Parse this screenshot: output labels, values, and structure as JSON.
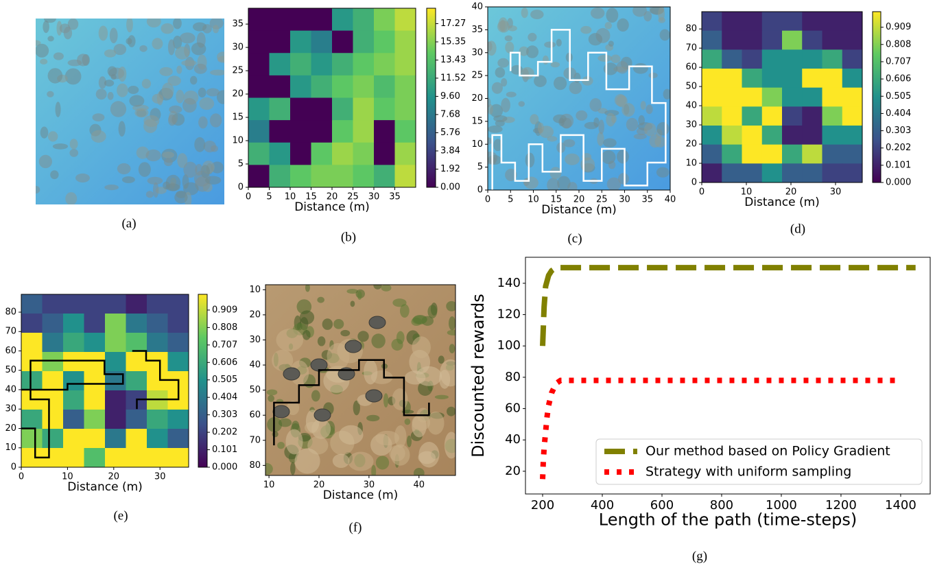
{
  "chart_data": [
    {
      "type": "image",
      "caption": "(a)"
    },
    {
      "type": "heatmap",
      "caption": "(b)",
      "xlabel": "Distance (m)",
      "xlim": [
        0,
        40
      ],
      "ylim": [
        0,
        38.4
      ],
      "xticks": [
        0,
        5,
        10,
        15,
        20,
        25,
        30,
        35
      ],
      "yticks": [
        0,
        5,
        10,
        15,
        20,
        25,
        30,
        35
      ],
      "clim": [
        0,
        18.9
      ],
      "cticks": [
        {
          "value": 0,
          "label": "0.00"
        },
        1.92,
        3.84,
        5.76,
        7.68,
        {
          "value": 9.6,
          "label": "9.60"
        },
        11.52,
        13.43,
        15.35,
        17.27
      ],
      "z": [
        [
          0,
          0,
          0,
          0,
          10,
          12,
          15,
          17
        ],
        [
          0,
          0,
          10,
          8,
          0,
          12,
          14,
          16
        ],
        [
          0,
          10,
          12,
          10,
          12,
          14,
          15,
          16
        ],
        [
          0,
          0,
          10,
          12,
          14,
          15,
          13,
          15
        ],
        [
          10,
          12,
          0,
          0,
          12,
          16,
          14,
          15
        ],
        [
          8,
          0,
          0,
          0,
          14,
          16,
          0,
          14
        ],
        [
          12,
          10,
          0,
          14,
          16,
          15,
          0,
          16
        ],
        [
          0,
          12,
          14,
          15,
          15,
          14,
          12,
          17
        ]
      ]
    },
    {
      "type": "image-path",
      "caption": "(c)",
      "xlabel": "Distance (m)",
      "xlim": [
        0,
        40
      ],
      "ylim": [
        0,
        40
      ],
      "xticks": [
        0,
        5,
        10,
        15,
        20,
        25,
        30,
        35,
        40
      ],
      "yticks": [
        0,
        5,
        10,
        15,
        20,
        25,
        30,
        35,
        40
      ],
      "path_color": "#ffffff",
      "path": {
        "x": [
          1,
          1,
          3,
          3,
          6,
          6,
          9,
          9,
          12,
          12,
          16,
          16,
          21,
          21,
          25,
          25,
          30,
          30,
          35,
          35,
          39,
          39,
          36,
          36,
          31,
          31,
          26,
          26,
          22,
          22,
          18,
          18,
          14,
          14,
          11,
          11,
          7,
          7,
          5,
          5
        ],
        "y": [
          0,
          12,
          12,
          6,
          6,
          2,
          2,
          10,
          10,
          4,
          4,
          12,
          12,
          2,
          2,
          9,
          9,
          1,
          1,
          6,
          6,
          19,
          19,
          27,
          27,
          22,
          22,
          30,
          30,
          24,
          24,
          35,
          35,
          28,
          28,
          25,
          25,
          30,
          30,
          26
        ]
      }
    },
    {
      "type": "heatmap",
      "caption": "(d)",
      "xlabel": "Distance (m)",
      "xlim": [
        0,
        36
      ],
      "ylim": [
        0,
        89
      ],
      "xticks": [
        0,
        10,
        20,
        30
      ],
      "yticks": [
        0,
        10,
        20,
        30,
        40,
        50,
        60,
        70,
        80
      ],
      "clim": [
        0,
        1
      ],
      "cticks": [
        {
          "value": 0,
          "label": "0.000"
        },
        0.101,
        0.202,
        0.303,
        0.404,
        0.505,
        0.606,
        0.707,
        0.808,
        0.909
      ],
      "z": [
        [
          0.2,
          0.1,
          0.1,
          0.2,
          0.2,
          0.1,
          0.1,
          0.1
        ],
        [
          0.3,
          0.1,
          0.1,
          0.2,
          0.8,
          0.2,
          0.1,
          0.1
        ],
        [
          0.6,
          0.3,
          0.2,
          0.5,
          0.5,
          0.5,
          0.6,
          0.2
        ],
        [
          1,
          1,
          0.6,
          0.5,
          0.5,
          1,
          1,
          0.5
        ],
        [
          1,
          1,
          1,
          0.8,
          0.5,
          0.5,
          1,
          1
        ],
        [
          0.9,
          1,
          0.6,
          1,
          0.2,
          0.1,
          0.8,
          1
        ],
        [
          0.5,
          0.9,
          1,
          0.6,
          0.1,
          0.1,
          0.5,
          0.5
        ],
        [
          0.3,
          0.6,
          1,
          1,
          0.6,
          0.9,
          0.3,
          0.3
        ],
        [
          0.1,
          0.3,
          0.3,
          0.5,
          0.3,
          0.3,
          0.2,
          0.2
        ]
      ]
    },
    {
      "type": "heatmap",
      "caption": "(e)",
      "xlabel": "Distance (m)",
      "xlim": [
        0,
        36.2
      ],
      "ylim": [
        0,
        89.2
      ],
      "xticks": [
        0,
        10,
        20,
        30
      ],
      "yticks": [
        0,
        10,
        20,
        30,
        40,
        50,
        60,
        70,
        80
      ],
      "clim": [
        0,
        1
      ],
      "cticks": [
        {
          "value": 0,
          "label": "0.000"
        },
        0.101,
        0.202,
        0.303,
        0.404,
        0.505,
        0.606,
        0.707,
        0.808,
        0.909
      ],
      "z": [
        [
          0.3,
          0.2,
          0.2,
          0.2,
          0.2,
          0.1,
          0.2,
          0.2
        ],
        [
          0.2,
          0.3,
          0.5,
          0.2,
          0.8,
          0.4,
          0.3,
          0.2
        ],
        [
          1,
          0.4,
          0.6,
          0.5,
          0.8,
          0.7,
          0.4,
          0.3
        ],
        [
          1,
          0.8,
          1,
          1,
          0.5,
          1,
          1,
          0.5
        ],
        [
          0.6,
          1,
          0.5,
          1,
          0.4,
          0.6,
          1,
          1
        ],
        [
          1,
          1,
          0.6,
          1,
          0.1,
          0.2,
          0.9,
          1
        ],
        [
          0.6,
          1,
          0.3,
          0.8,
          0.1,
          0.3,
          0.6,
          0.5
        ],
        [
          0.8,
          0.6,
          1,
          1,
          0.4,
          1,
          0.5,
          0.3
        ],
        [
          1,
          1,
          1,
          0.7,
          1,
          1,
          1,
          1
        ]
      ],
      "path_color": "#000000",
      "path": {
        "x": [
          0,
          3,
          3,
          6,
          6,
          2,
          2,
          18,
          18,
          22,
          22,
          10,
          10,
          0,
          null,
          24,
          27,
          27,
          30,
          30,
          34,
          34,
          25,
          25
        ],
        "y": [
          20,
          20,
          5,
          5,
          35,
          35,
          55,
          55,
          48,
          48,
          43,
          43,
          40,
          40,
          null,
          60,
          60,
          55,
          55,
          45,
          45,
          35,
          35,
          30
        ]
      }
    },
    {
      "type": "image-path",
      "caption": "(f)",
      "xlabel": "Distance (m)",
      "xlim": [
        9.3,
        47.3
      ],
      "ylim": [
        84,
        8
      ],
      "xticks": [
        10,
        20,
        30,
        40
      ],
      "yticks": [
        10,
        20,
        30,
        40,
        50,
        60,
        70,
        80
      ],
      "path_color": "#000000",
      "path": {
        "x": [
          11,
          11,
          16,
          16,
          20,
          20,
          28,
          28,
          33,
          33,
          37,
          37,
          42,
          42
        ],
        "y": [
          72,
          55,
          55,
          48,
          48,
          42,
          42,
          38,
          38,
          45,
          45,
          60,
          60,
          55
        ]
      }
    },
    {
      "type": "line",
      "caption": "(g)",
      "xlabel": "Length of the path (time-steps)",
      "ylabel": "Discounted rewards",
      "xlim": [
        142.5,
        1499
      ],
      "ylim": [
        5.5,
        156.6
      ],
      "xticks": [
        200,
        400,
        600,
        800,
        1000,
        1200,
        1400
      ],
      "yticks": [
        20,
        40,
        60,
        80,
        100,
        120,
        140
      ],
      "legend": "lower right",
      "series": [
        {
          "name": "Our method based on Policy Gradient",
          "color": "#808000",
          "style": "dashed",
          "x": [
            200,
            205,
            210,
            220,
            230,
            245,
            260,
            1450
          ],
          "values": [
            100,
            125,
            138,
            145,
            148,
            150,
            150,
            150
          ]
        },
        {
          "name": "Strategy with uniform sampling",
          "color": "#ff0000",
          "style": "dotted",
          "x": [
            200,
            202,
            205,
            210,
            215,
            220,
            230,
            245,
            260,
            1400
          ],
          "values": [
            15,
            25,
            35,
            45,
            55,
            62,
            70,
            76,
            78,
            78
          ]
        }
      ]
    }
  ]
}
